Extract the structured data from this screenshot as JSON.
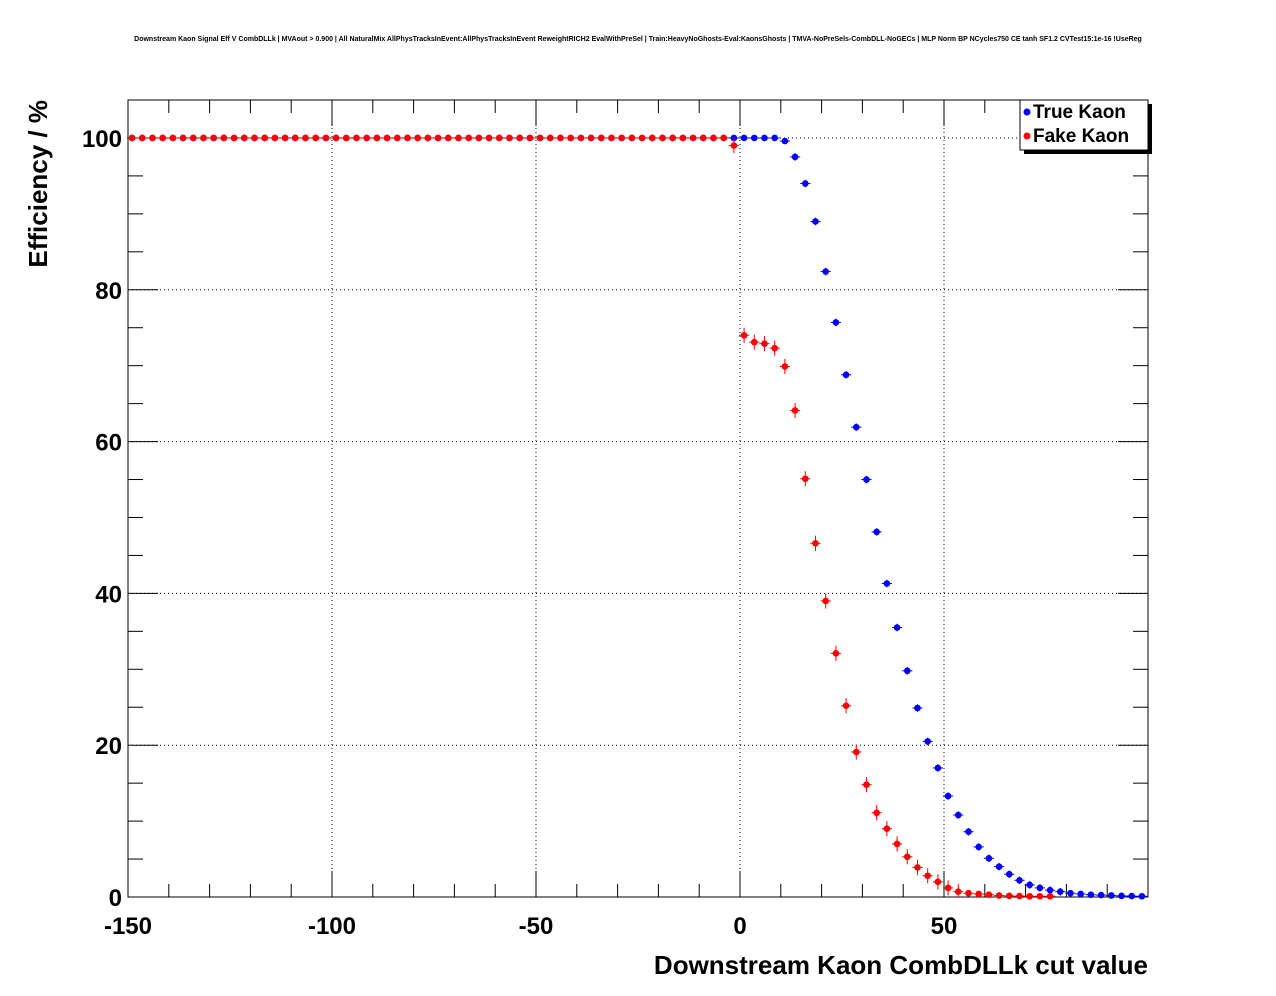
{
  "chart_data": {
    "type": "scatter",
    "title": "Downstream Kaon Signal Eff V CombDLLk | MVAout > 0.900 | All NaturalMix AllPhysTracksInEvent:AllPhysTracksInEvent ReweightRICH2 EvalWithPreSel | Train:HeavyNoGhosts-Eval:KaonsGhosts | TMVA-NoPreSels-CombDLL-NoGECs | MLP Norm BP NCycles750 CE tanh SF1.2 CVTest15:1e-16 !UseReg",
    "xlabel": "Downstream Kaon CombDLLk cut value",
    "ylabel": "Efficiency / %",
    "xlim": [
      -150,
      100
    ],
    "ylim": [
      0,
      105
    ],
    "x_ticks": [
      -150,
      -100,
      -50,
      0,
      50
    ],
    "y_ticks": [
      0,
      20,
      40,
      60,
      80,
      100
    ],
    "grid": true,
    "legend_position": "top-right",
    "series": [
      {
        "name": "True Kaon",
        "color": "#0000ff",
        "x": [
          -149,
          -146.5,
          -144,
          -141.5,
          -139,
          -136.5,
          -134,
          -131.5,
          -129,
          -126.5,
          -124,
          -121.5,
          -119,
          -116.5,
          -114,
          -111.5,
          -109,
          -106.5,
          -104,
          -101.5,
          -99,
          -96.5,
          -94,
          -91.5,
          -89,
          -86.5,
          -84,
          -81.5,
          -79,
          -76.5,
          -74,
          -71.5,
          -69,
          -66.5,
          -64,
          -61.5,
          -59,
          -56.5,
          -54,
          -51.5,
          -49,
          -46.5,
          -44,
          -41.5,
          -39,
          -36.5,
          -34,
          -31.5,
          -29,
          -26.5,
          -24,
          -21.5,
          -19,
          -16.5,
          -14,
          -11.5,
          -9,
          -6.5,
          -4,
          -1.5,
          1,
          3.5,
          6,
          8.5,
          11,
          13.5,
          16,
          18.5,
          21,
          23.5,
          26,
          28.5,
          31,
          33.5,
          36,
          38.5,
          41,
          43.5,
          46,
          48.5,
          51,
          53.5,
          56,
          58.5,
          61,
          63.5,
          66,
          68.5,
          71,
          73.5,
          76,
          78.5,
          81,
          83.5,
          86,
          88.5,
          91,
          93.5,
          96,
          98.5
        ],
        "values": [
          100,
          100,
          100,
          100,
          100,
          100,
          100,
          100,
          100,
          100,
          100,
          100,
          100,
          100,
          100,
          100,
          100,
          100,
          100,
          100,
          100,
          100,
          100,
          100,
          100,
          100,
          100,
          100,
          100,
          100,
          100,
          100,
          100,
          100,
          100,
          100,
          100,
          100,
          100,
          100,
          100,
          100,
          100,
          100,
          100,
          100,
          100,
          100,
          100,
          100,
          100,
          100,
          100,
          100,
          100,
          100,
          100,
          100,
          100,
          100,
          100,
          100,
          100,
          100,
          99.6,
          97.5,
          94,
          89,
          82.4,
          75.7,
          68.8,
          61.9,
          55,
          48.1,
          41.3,
          35.5,
          29.8,
          24.9,
          20.5,
          17,
          13.3,
          10.8,
          8.6,
          6.6,
          5.1,
          4,
          3,
          2.2,
          1.6,
          1.2,
          0.9,
          0.7,
          0.5,
          0.4,
          0.3,
          0.25,
          0.2,
          0.15,
          0.12,
          0.1
        ]
      },
      {
        "name": "Fake Kaon",
        "color": "#ff0000",
        "x": [
          -149,
          -146.5,
          -144,
          -141.5,
          -139,
          -136.5,
          -134,
          -131.5,
          -129,
          -126.5,
          -124,
          -121.5,
          -119,
          -116.5,
          -114,
          -111.5,
          -109,
          -106.5,
          -104,
          -101.5,
          -99,
          -96.5,
          -94,
          -91.5,
          -89,
          -86.5,
          -84,
          -81.5,
          -79,
          -76.5,
          -74,
          -71.5,
          -69,
          -66.5,
          -64,
          -61.5,
          -59,
          -56.5,
          -54,
          -51.5,
          -49,
          -46.5,
          -44,
          -41.5,
          -39,
          -36.5,
          -34,
          -31.5,
          -29,
          -26.5,
          -24,
          -21.5,
          -19,
          -16.5,
          -14,
          -11.5,
          -9,
          -6.5,
          -4,
          -1.5,
          1,
          3.5,
          6,
          8.5,
          11,
          13.5,
          16,
          18.5,
          21,
          23.5,
          26,
          28.5,
          31,
          33.5,
          36,
          38.5,
          41,
          43.5,
          46,
          48.5,
          51,
          53.5,
          56,
          58.5,
          61,
          63.5,
          66,
          68.5,
          71,
          73.5,
          76
        ],
        "values": [
          100,
          100,
          100,
          100,
          100,
          100,
          100,
          100,
          100,
          100,
          100,
          100,
          100,
          100,
          100,
          100,
          100,
          100,
          100,
          100,
          100,
          100,
          100,
          100,
          100,
          100,
          100,
          100,
          100,
          100,
          100,
          100,
          100,
          100,
          100,
          100,
          100,
          100,
          100,
          100,
          100,
          100,
          100,
          100,
          100,
          100,
          100,
          100,
          100,
          100,
          100,
          100,
          100,
          100,
          100,
          100,
          100,
          100,
          100,
          99,
          74,
          73.1,
          72.9,
          72.3,
          69.9,
          64.1,
          55.1,
          46.6,
          39,
          32.1,
          25.2,
          19.1,
          14.8,
          11.1,
          9,
          7,
          5.3,
          3.9,
          2.8,
          2,
          1.2,
          0.7,
          0.5,
          0.4,
          0.3,
          0.2,
          0.15,
          0.12,
          0.1,
          0.1,
          0.1
        ]
      }
    ]
  }
}
